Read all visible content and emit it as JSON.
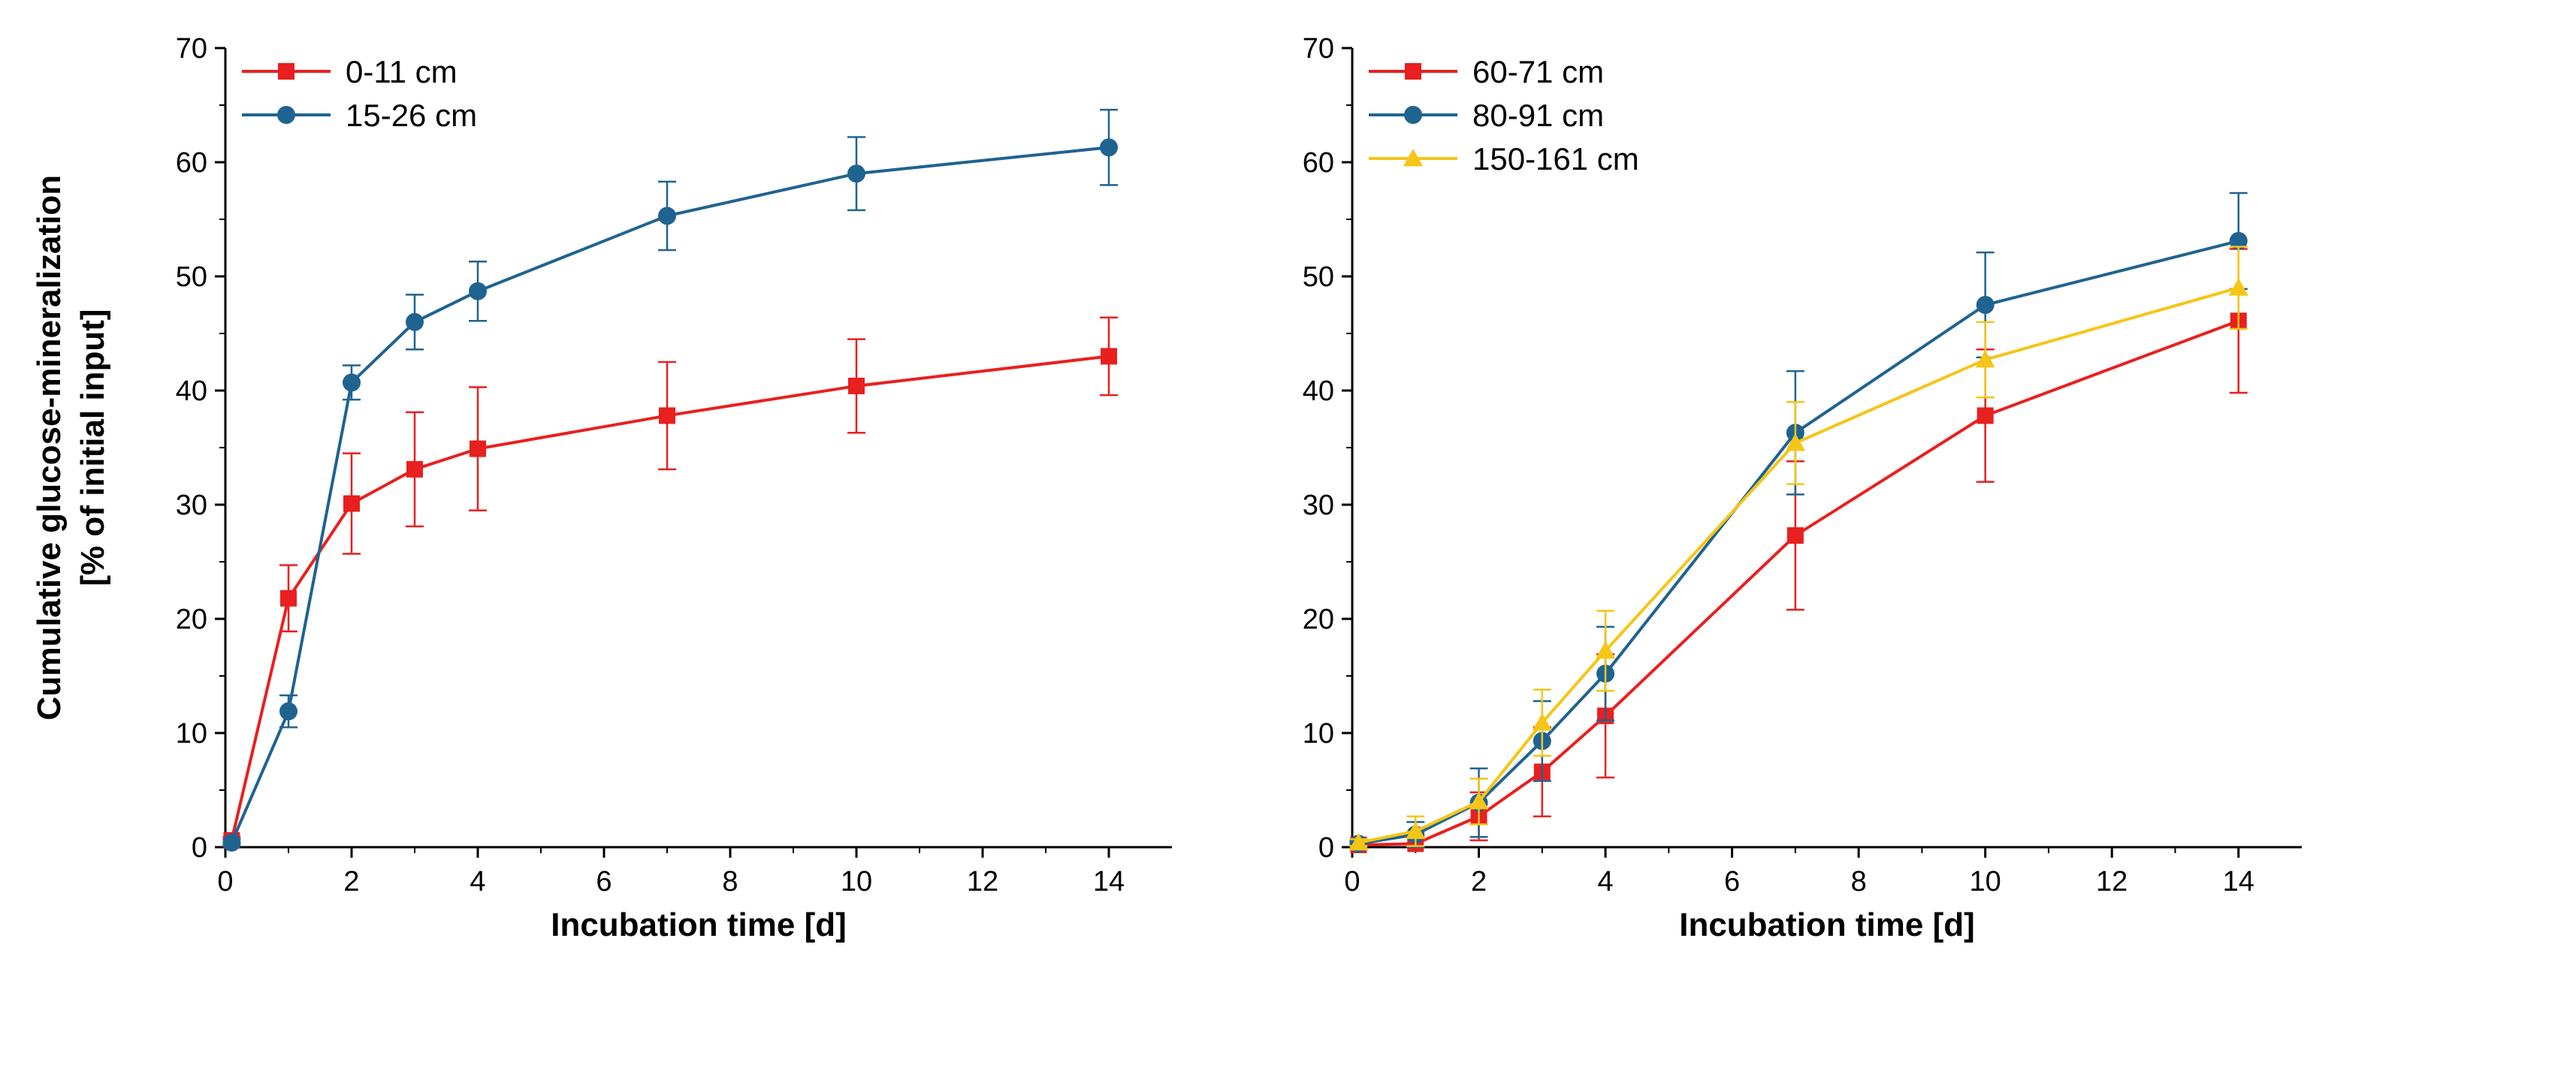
{
  "chart_data": [
    {
      "type": "line",
      "panel": "left",
      "title": "",
      "xlabel": "Incubation time [d]",
      "ylabel_lines": [
        "Cumulative glucose-mineralization",
        "[% of initial input]"
      ],
      "xlim": [
        0,
        15
      ],
      "ylim": [
        0,
        70
      ],
      "xticks": [
        0,
        2,
        4,
        6,
        8,
        10,
        12,
        14
      ],
      "yticks": [
        0,
        10,
        20,
        30,
        40,
        50,
        60,
        70
      ],
      "legend_position": "top-left",
      "series": [
        {
          "name": "0-11 cm",
          "color": "#e8201f",
          "marker": "square",
          "x": [
            0.1,
            1,
            2,
            3,
            4,
            7,
            10,
            14
          ],
          "y": [
            0.6,
            21.8,
            30.1,
            33.1,
            34.9,
            37.8,
            40.4,
            43.0
          ],
          "err": [
            0.3,
            2.9,
            4.4,
            5.0,
            5.4,
            4.7,
            4.1,
            3.4
          ]
        },
        {
          "name": "15-26 cm",
          "color": "#1f6391",
          "marker": "circle",
          "x": [
            0.1,
            1,
            2,
            3,
            4,
            7,
            10,
            14
          ],
          "y": [
            0.4,
            11.9,
            40.7,
            46.0,
            48.7,
            55.3,
            59.0,
            61.3
          ],
          "err": [
            0.3,
            1.4,
            1.5,
            2.4,
            2.6,
            3.0,
            3.2,
            3.3
          ]
        }
      ]
    },
    {
      "type": "line",
      "panel": "right",
      "title": "",
      "xlabel": "Incubation time [d]",
      "ylabel_lines": [],
      "xlim": [
        0,
        15
      ],
      "ylim": [
        0,
        70
      ],
      "xticks": [
        0,
        2,
        4,
        6,
        8,
        10,
        12,
        14
      ],
      "yticks": [
        0,
        10,
        20,
        30,
        40,
        50,
        60,
        70
      ],
      "legend_position": "top-left",
      "series": [
        {
          "name": "60-71 cm",
          "color": "#e8201f",
          "marker": "square",
          "x": [
            0.1,
            1,
            2,
            3,
            4,
            7,
            10,
            14
          ],
          "y": [
            0.2,
            0.3,
            2.7,
            6.6,
            11.5,
            27.3,
            37.8,
            46.1
          ],
          "err": [
            0.3,
            0.6,
            2.1,
            3.9,
            5.4,
            6.5,
            5.8,
            6.3
          ]
        },
        {
          "name": "80-91 cm",
          "color": "#1f6391",
          "marker": "circle",
          "x": [
            0.1,
            1,
            2,
            3,
            4,
            7,
            10,
            14
          ],
          "y": [
            0.3,
            1.1,
            3.9,
            9.3,
            15.2,
            36.3,
            47.5,
            53.1
          ],
          "err": [
            0.3,
            1.1,
            3.0,
            3.5,
            4.1,
            5.4,
            4.6,
            4.2
          ]
        },
        {
          "name": "150-161 cm",
          "color": "#f5c518",
          "marker": "triangle",
          "x": [
            0.1,
            1,
            2,
            3,
            4,
            7,
            10,
            14
          ],
          "y": [
            0.4,
            1.4,
            4.0,
            10.9,
            17.2,
            35.4,
            42.7,
            49.0
          ],
          "err": [
            0.3,
            1.3,
            2.0,
            2.9,
            3.5,
            3.6,
            3.3,
            3.6
          ]
        }
      ]
    }
  ]
}
